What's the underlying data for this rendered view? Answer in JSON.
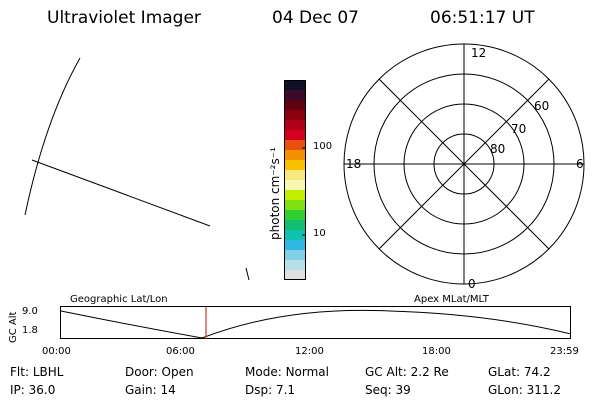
{
  "header": {
    "title": "Ultraviolet Imager",
    "date": "04 Dec 07",
    "time": "06:51:17 UT"
  },
  "colorbar": {
    "unit_label": "photon cm⁻²s⁻¹",
    "ticks": [
      "100",
      "10"
    ],
    "colors": [
      "#101028",
      "#3a0a2a",
      "#600010",
      "#8a0010",
      "#b00018",
      "#d40020",
      "#e85010",
      "#f49000",
      "#f8c000",
      "#f8e880",
      "#f8f8b0",
      "#c0f000",
      "#80e010",
      "#30d030",
      "#10c070",
      "#10c0b0",
      "#30b8e0",
      "#80d0e8",
      "#b8e0e8",
      "#e0e0e0"
    ]
  },
  "polar_plot": {
    "mlt_labels": {
      "top": "12",
      "left": "18",
      "right": "6",
      "bottom": "0"
    },
    "lat_labels": [
      "60",
      "70",
      "80"
    ]
  },
  "timeline": {
    "left_title": "Geographic Lat/Lon",
    "right_title": "Apex MLat/MLT",
    "axis_label": "GC Alt",
    "y_ticks": [
      "9.0",
      "1.8"
    ],
    "x_ticks": [
      "00:00",
      "06:00",
      "12:00",
      "18:00",
      "23:59"
    ],
    "marker_color": "#c83a2a"
  },
  "footer": {
    "row1": [
      {
        "label": "Flt:",
        "value": "LBHL"
      },
      {
        "label": "Door:",
        "value": "Open"
      },
      {
        "label": "Mode:",
        "value": "Normal"
      },
      {
        "label": "GC Alt:",
        "value": "2.2 Re"
      },
      {
        "label": "GLat:",
        "value": "74.2"
      }
    ],
    "row2": [
      {
        "label": "IP:",
        "value": "36.0"
      },
      {
        "label": "Gain:",
        "value": "14"
      },
      {
        "label": "Dsp:",
        "value": "7.1"
      },
      {
        "label": "Seq:",
        "value": "39"
      },
      {
        "label": "GLon:",
        "value": "311.2"
      }
    ]
  }
}
